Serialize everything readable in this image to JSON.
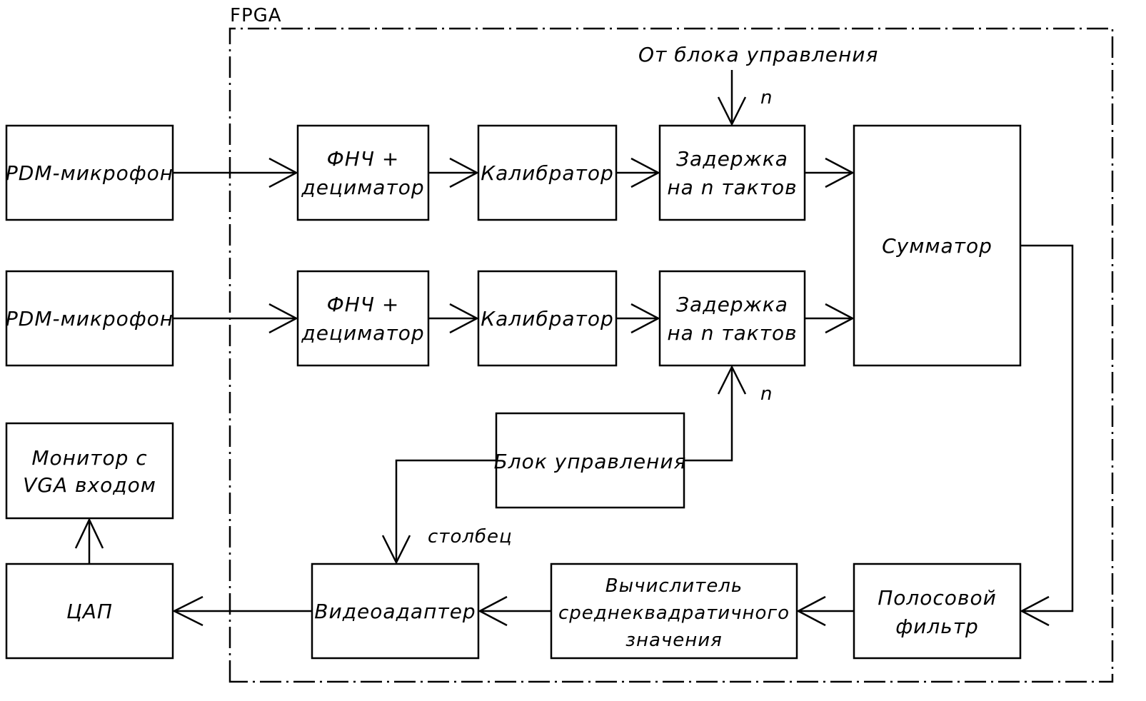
{
  "fpga": {
    "label": "FPGA"
  },
  "external": {
    "mic1": "PDM-микрофон",
    "mic2": "PDM-микрофон",
    "monitor_line1": "Монитор с",
    "monitor_line2": "VGA входом",
    "dac": "ЦАП"
  },
  "channel1": {
    "lpf_line1": "ФНЧ +",
    "lpf_line2": "дециматор",
    "calibrator": "Калибратор",
    "delay_line1": "Задержка",
    "delay_line2": "на n тактов"
  },
  "channel2": {
    "lpf_line1": "ФНЧ +",
    "lpf_line2": "дециматор",
    "calibrator": "Калибратор",
    "delay_line1": "Задержка",
    "delay_line2": "на n тактов"
  },
  "blocks": {
    "summator": "Сумматор",
    "control": "Блок управления",
    "bandpass_line1": "Полосовой",
    "bandpass_line2": "фильтр",
    "rms_line1": "Вычислитель",
    "rms_line2": "среднеквадратичного",
    "rms_line3": "значения",
    "video": "Видеоадаптер"
  },
  "signals": {
    "from_control": "От блока управления",
    "n_top": "n",
    "n_bottom": "n",
    "column": "столбец"
  }
}
